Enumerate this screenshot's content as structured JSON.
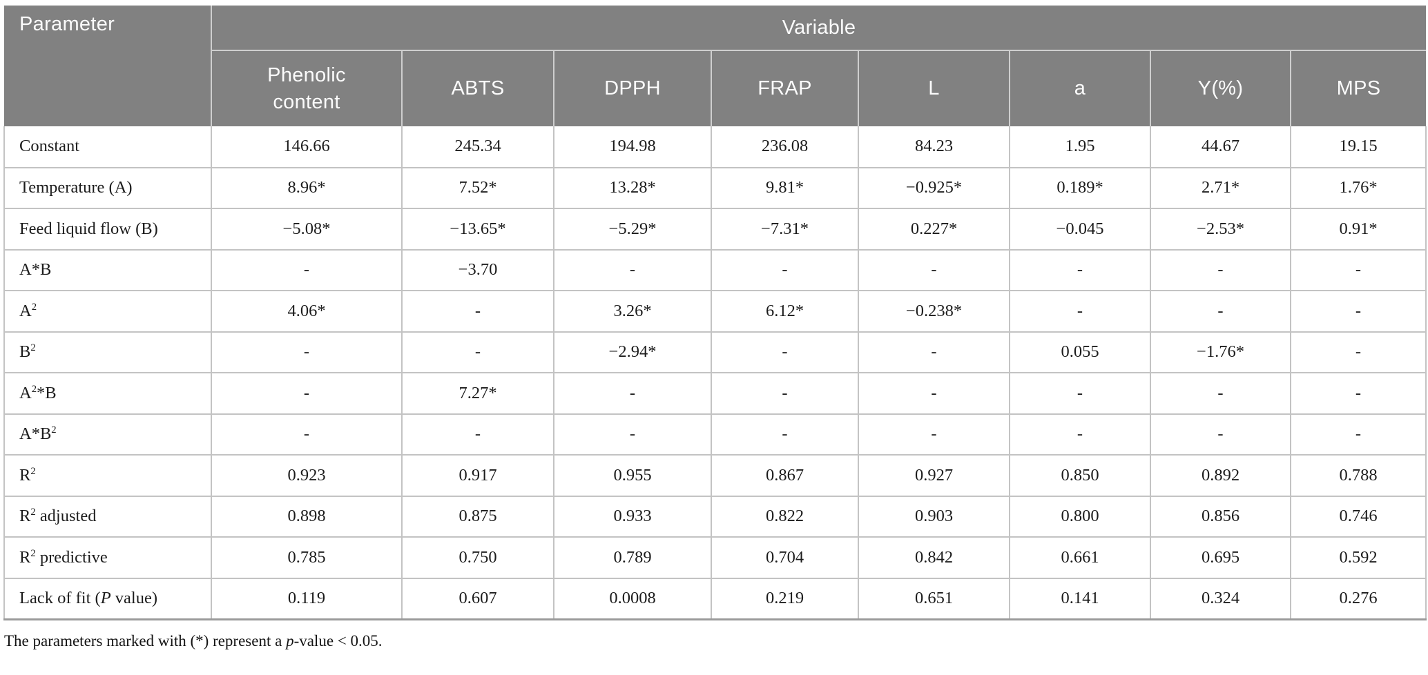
{
  "table": {
    "header": {
      "parameter_label": "Parameter",
      "variable_label": "Variable",
      "columns": [
        "Phenolic content",
        "ABTS",
        "DPPH",
        "FRAP",
        "L",
        "a",
        "Y(%)",
        "MPS"
      ]
    },
    "rows": [
      {
        "parameter": "Constant",
        "values": [
          "146.66",
          "245.34",
          "194.98",
          "236.08",
          "84.23",
          "1.95",
          "44.67",
          "19.15"
        ]
      },
      {
        "parameter": "Temperature (A)",
        "values": [
          "8.96*",
          "7.52*",
          "13.28*",
          "9.81*",
          "−0.925*",
          "0.189*",
          "2.71*",
          "1.76*"
        ]
      },
      {
        "parameter": "Feed liquid flow (B)",
        "values": [
          "−5.08*",
          "−13.65*",
          "−5.29*",
          "−7.31*",
          "0.227*",
          "−0.045",
          "−2.53*",
          "0.91*"
        ]
      },
      {
        "parameter": "A*B",
        "values": [
          "-",
          "−3.70",
          "-",
          "-",
          "-",
          "-",
          "-",
          "-"
        ]
      },
      {
        "parameter": "A<sup>2</sup>",
        "values": [
          "4.06*",
          "-",
          "3.26*",
          "6.12*",
          "−0.238*",
          "-",
          "-",
          "-"
        ]
      },
      {
        "parameter": "B<sup>2</sup>",
        "values": [
          "-",
          "-",
          "−2.94*",
          "-",
          "-",
          "0.055",
          "−1.76*",
          "-"
        ]
      },
      {
        "parameter": "A<sup>2</sup>*B",
        "values": [
          "-",
          "7.27*",
          "-",
          "-",
          "-",
          "-",
          "-",
          "-"
        ]
      },
      {
        "parameter": "A*B<sup>2</sup>",
        "values": [
          "-",
          "-",
          "-",
          "-",
          "-",
          "-",
          "-",
          "-"
        ]
      },
      {
        "parameter": "R<sup>2</sup>",
        "values": [
          "0.923",
          "0.917",
          "0.955",
          "0.867",
          "0.927",
          "0.850",
          "0.892",
          "0.788"
        ]
      },
      {
        "parameter": "R<sup>2</sup> adjusted",
        "values": [
          "0.898",
          "0.875",
          "0.933",
          "0.822",
          "0.903",
          "0.800",
          "0.856",
          "0.746"
        ]
      },
      {
        "parameter": "R<sup>2</sup> predictive",
        "values": [
          "0.785",
          "0.750",
          "0.789",
          "0.704",
          "0.842",
          "0.661",
          "0.695",
          "0.592"
        ]
      },
      {
        "parameter": "Lack of fit (<i>P</i> value)",
        "values": [
          "0.119",
          "0.607",
          "0.0008",
          "0.219",
          "0.651",
          "0.141",
          "0.324",
          "0.276"
        ]
      }
    ],
    "footnote": "The parameters marked with (*) represent a <i>p</i>-value &lt; 0.05.",
    "colors": {
      "header_bg": "#818181",
      "header_text": "#fbfbfb",
      "header_divider": "#cfcfcf",
      "grid_border": "#c3c3c3",
      "bottom_border": "#9a9a9a"
    }
  }
}
